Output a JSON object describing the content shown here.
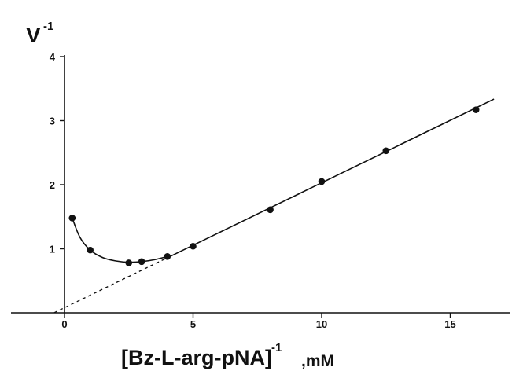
{
  "chart_data": {
    "type": "scatter",
    "title": "",
    "xlabel": "[Bz-L-arg-pNA]",
    "xlabel_superscript": "-1",
    "xlabel_unit": ",mM",
    "ylabel": "V",
    "ylabel_superscript": "-1",
    "xlim": [
      -2,
      17
    ],
    "ylim": [
      0,
      4
    ],
    "xticks": [
      0,
      5,
      10,
      15
    ],
    "yticks": [
      1,
      2,
      3,
      4
    ],
    "grid": false,
    "legend": "none",
    "points": [
      {
        "x": 0.3,
        "y": 1.48
      },
      {
        "x": 1.0,
        "y": 0.98
      },
      {
        "x": 2.5,
        "y": 0.78
      },
      {
        "x": 3.0,
        "y": 0.8
      },
      {
        "x": 4.0,
        "y": 0.88
      },
      {
        "x": 5.0,
        "y": 1.04
      },
      {
        "x": 8.0,
        "y": 1.61
      },
      {
        "x": 10.0,
        "y": 2.05
      },
      {
        "x": 12.5,
        "y": 2.53
      },
      {
        "x": 16.0,
        "y": 3.17
      }
    ],
    "linear_fit": {
      "slope": 0.195,
      "intercept": 0.08,
      "x_start": 4.0,
      "x_end": 16.7
    },
    "extrapolation": {
      "style": "dashed",
      "x_start": -0.4,
      "x_end": 4.0
    },
    "curve": [
      {
        "x": 0.3,
        "y": 1.48
      },
      {
        "x": 0.6,
        "y": 1.18
      },
      {
        "x": 1.0,
        "y": 0.98
      },
      {
        "x": 1.5,
        "y": 0.86
      },
      {
        "x": 2.0,
        "y": 0.81
      },
      {
        "x": 2.5,
        "y": 0.79
      },
      {
        "x": 3.0,
        "y": 0.8
      },
      {
        "x": 3.5,
        "y": 0.83
      },
      {
        "x": 4.0,
        "y": 0.88
      }
    ]
  }
}
